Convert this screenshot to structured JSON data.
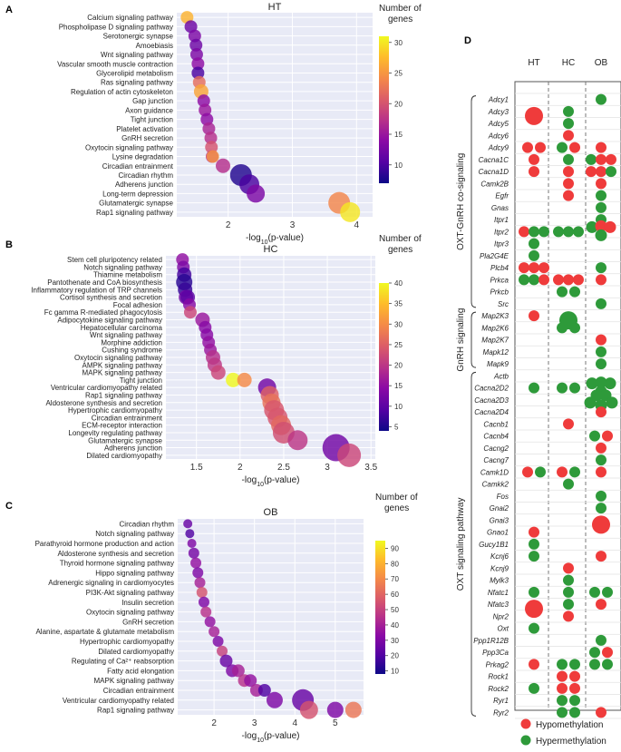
{
  "chart_data": [
    {
      "panel": "A",
      "type": "scatter",
      "title": "HT",
      "xlabel": "-log10(p-value)",
      "xticks": [
        2,
        3,
        4
      ],
      "xlim": [
        1.2,
        4.25
      ],
      "legend_title": "Number of genes",
      "legend_ticks": [
        10,
        15,
        20,
        25,
        30
      ],
      "legend_range": [
        7,
        31
      ],
      "categories": [
        "Calcium signaling pathway",
        "Phospholipase D signaling pathway",
        "Serotonergic synapse",
        "Amoebiasis",
        "Wnt signaling pathway",
        "Vascular smooth muscle contraction",
        "Glycerolipid metabolism",
        "Ras signaling pathway",
        "Regulation of actin cytoskeleton",
        "Gap junction",
        "Axon guidance",
        "Tight junction",
        "Platelet activation",
        "GnRH secretion",
        "Oxytocin signaling pathway",
        "Lysine degradation",
        "Circadian entrainment",
        "Circadian rhythm",
        "Adherens junction",
        "Long-term depression",
        "Glutamatergic synapse",
        "Rap1 signaling pathway"
      ],
      "x": [
        1.36,
        1.42,
        1.48,
        1.5,
        1.51,
        1.53,
        1.53,
        1.55,
        1.58,
        1.62,
        1.64,
        1.67,
        1.7,
        1.73,
        1.74,
        1.75,
        1.76,
        1.92,
        2.2,
        2.33,
        2.43,
        3.73,
        3.9
      ],
      "genes": [
        27,
        12,
        13,
        12,
        13,
        14,
        10,
        22,
        26,
        14,
        15,
        14,
        16,
        17,
        20,
        17,
        25,
        17,
        8,
        10,
        13,
        24,
        30
      ],
      "sizes": [
        7,
        7,
        7,
        7,
        7,
        7,
        7,
        7,
        8,
        7,
        7,
        7,
        7,
        7,
        7,
        7,
        7,
        8,
        12,
        11,
        10,
        12,
        11
      ],
      "rows": [
        0,
        1,
        2,
        3,
        4,
        5,
        6,
        7,
        8,
        9,
        10,
        11,
        12,
        13,
        14,
        15,
        15,
        16,
        17,
        18,
        19,
        20,
        21
      ]
    },
    {
      "panel": "B",
      "type": "scatter",
      "title": "HC",
      "xlabel": "-log10(p-value)",
      "xticks": [
        1.5,
        2.0,
        2.5,
        3.0,
        3.5
      ],
      "xlim": [
        1.15,
        3.55
      ],
      "legend_title": "Number of genes",
      "legend_ticks": [
        5,
        10,
        15,
        20,
        25,
        30,
        35,
        40
      ],
      "legend_range": [
        4,
        40
      ],
      "categories": [
        "Stem cell pluripotency related",
        "Notch signaling pathway",
        "Thiamine metabolism",
        "Pantothenate and CoA biosynthesis",
        "Inflammatory regulation of TRP channels",
        "Cortisol synthesis and secretion",
        "Focal adhesion",
        "Fc gamma R-mediated phagocytosis",
        "Adipocytokine signaling pathway",
        "Hepatocellular carcinoma",
        "Wnt signaling pathway",
        "Morphine addiction",
        "Cushing syndrome",
        "Oxytocin signaling pathway",
        "AMPK signaling pathway",
        "MAPK signaling pathway",
        "Tight junction",
        "Ventricular cardiomyopathy related",
        "Rap1 signaling pathway",
        "Aldosterone synthesis and secretion",
        "Hypertrophic cardiomyopathy",
        "Circadian entrainment",
        "ECM-receptor interaction",
        "Longevity regulating pathway",
        "Glutamatergic synapse",
        "Adherens junction",
        "Dilated cardiomyopathy"
      ],
      "x": [
        1.34,
        1.35,
        1.36,
        1.36,
        1.37,
        1.38,
        1.4,
        1.42,
        1.43,
        1.57,
        1.6,
        1.62,
        1.64,
        1.66,
        1.69,
        1.71,
        1.75,
        1.92,
        2.05,
        2.31,
        2.34,
        2.36,
        2.39,
        2.43,
        2.47,
        2.5,
        2.66,
        3.1,
        3.25
      ],
      "genes": [
        15,
        13,
        8,
        6,
        7,
        12,
        10,
        14,
        22,
        16,
        14,
        14,
        15,
        16,
        19,
        20,
        22,
        40,
        30,
        12,
        25,
        27,
        24,
        24,
        26,
        23,
        20,
        12,
        22
      ],
      "sizes": [
        7,
        7,
        8,
        9,
        8,
        8,
        8,
        7,
        7,
        8,
        7,
        7,
        7,
        7,
        8,
        8,
        8,
        8,
        8,
        10,
        10,
        10,
        11,
        11,
        11,
        12,
        11,
        15,
        13
      ],
      "rows": [
        0,
        1,
        2,
        3,
        4,
        5,
        5,
        6,
        7,
        8,
        9,
        10,
        11,
        12,
        13,
        14,
        15,
        16,
        16,
        17,
        18,
        19,
        20,
        21,
        22,
        23,
        24,
        25,
        26
      ]
    },
    {
      "panel": "C",
      "type": "scatter",
      "title": "OB",
      "xlabel": "-log10(p-value)",
      "xticks": [
        2,
        3,
        4,
        5
      ],
      "xlim": [
        1.1,
        5.7
      ],
      "legend_title": "Number of genes",
      "legend_ticks": [
        10,
        20,
        30,
        40,
        50,
        60,
        70,
        80,
        90
      ],
      "legend_range": [
        8,
        95
      ],
      "categories": [
        "Circadian rhythm",
        "Notch signaling pathway",
        "Parathyroid hormone production and action",
        "Aldosterone synthesis and secretion",
        "Thyroid hormone signaling pathway",
        "Hippo signaling pathway",
        "Adrenergic signaling in cardiomyocytes",
        "PI3K-Akt signaling pathway",
        "Insulin secretion",
        "Oxytocin signaling pathway",
        "GnRH secretion",
        "Alanine, aspartate & glutamate metabolism",
        "Hypertrophic cardiomyopathy",
        "Dilated cardiomyopathy",
        "Regulating of Ca2+ reabsorption",
        "Fatty acid elongation",
        "MAPK signaling pathway",
        "Circadian entrainment",
        "Ventricular cardiomyopathy related",
        "Rap1 signaling pathway"
      ],
      "x": [
        1.35,
        1.4,
        1.45,
        1.5,
        1.55,
        1.6,
        1.65,
        1.7,
        1.75,
        1.8,
        1.9,
        2.0,
        2.1,
        2.2,
        2.3,
        2.45,
        2.6,
        2.75,
        2.9,
        3.05,
        3.25,
        3.5,
        4.2,
        4.35,
        5.0,
        5.45
      ],
      "genes": [
        25,
        20,
        30,
        28,
        35,
        30,
        40,
        55,
        30,
        45,
        35,
        40,
        30,
        50,
        25,
        30,
        40,
        45,
        35,
        40,
        20,
        30,
        25,
        55,
        30,
        65
      ],
      "sizes": [
        5,
        5,
        5,
        6,
        6,
        6,
        6,
        6,
        6,
        6,
        6,
        6,
        6,
        6,
        7,
        7,
        7,
        7,
        7,
        7,
        7,
        9,
        12,
        10,
        9,
        9
      ],
      "rows": [
        0,
        1,
        2,
        3,
        4,
        5,
        6,
        7,
        8,
        9,
        10,
        11,
        12,
        13,
        14,
        15,
        15,
        16,
        16,
        17,
        17,
        18,
        18,
        19,
        19,
        19
      ]
    },
    {
      "panel": "D",
      "type": "dot-matrix",
      "columns": [
        "HT",
        "HC",
        "OB"
      ],
      "legend": {
        "red": "Hypomethylation",
        "green": "Hypermethylation"
      },
      "groups": [
        {
          "label": "OXT-GnRH co-signaling",
          "from": "Adcy1",
          "to": "Src"
        },
        {
          "label": "GnRH signaling",
          "from": "Map2K3",
          "to": "Mapk9"
        },
        {
          "label": "OXT signaling pathway",
          "from": "Actb",
          "to": "Ryr2"
        }
      ],
      "genes": [
        "Adcy1",
        "Adcy3",
        "Adcy5",
        "Adcy6",
        "Adcy9",
        "Cacna1C",
        "Cacna1D",
        "Camk2B",
        "Egfr",
        "Gnas",
        "Itpr1",
        "Itpr2",
        "Itpr3",
        "Pla2G4E",
        "Plcb4",
        "Prkca",
        "Prkcb",
        "Src",
        "Map2K3",
        "Map2K6",
        "Map2K7",
        "Mapk12",
        "Mapk9",
        "Actb",
        "Cacna2D2",
        "Cacna2D3",
        "Cacna2D4",
        "Cacnb1",
        "Cacnb4",
        "Cacng2",
        "Cacng7",
        "Camk1D",
        "Camkk2",
        "Fos",
        "Gnai2",
        "Gnai3",
        "Gnao1",
        "Gucy1B1",
        "Kcnj6",
        "Kcnj9",
        "Mylk3",
        "Nfatc1",
        "Nfatc3",
        "Npr2",
        "Oxt",
        "Ppp1R12B",
        "Ppp3Ca",
        "Prkag2",
        "Rock1",
        "Rock2",
        "Ryr1",
        "Ryr2"
      ],
      "marks": {
        "HT": [
          "",
          "RL",
          "",
          "",
          "RR",
          "R",
          "R",
          "",
          "",
          "",
          "",
          "RGG",
          "G",
          "G",
          "RRR",
          "GGR",
          "",
          "",
          "R",
          "",
          "",
          "",
          "",
          "",
          "G",
          "",
          "",
          "",
          "",
          "",
          "",
          "RG",
          "",
          "",
          "",
          "",
          "R",
          "G",
          "G",
          "",
          "",
          "G",
          "RL",
          "",
          "G",
          "",
          "",
          "R",
          "",
          "G",
          "",
          ""
        ],
        "HC": [
          "",
          "G",
          "G",
          "R",
          "GR",
          "G",
          "R",
          "R",
          "R",
          "",
          "",
          "GGG",
          "",
          "",
          "",
          "RRR",
          "GG",
          "",
          "GL",
          "GG",
          "",
          "",
          "",
          "",
          "GG",
          "",
          "",
          "R",
          "",
          "",
          "",
          "RG",
          "G",
          "",
          "",
          "",
          "",
          "",
          "",
          "R",
          "G",
          "G",
          "G",
          "R",
          "",
          "",
          "",
          "GG",
          "RR",
          "RR",
          "GG",
          "GG"
        ],
        "OB": [
          "G",
          "",
          "",
          "",
          "R",
          "GRR",
          "RRG",
          "R",
          "G",
          "G",
          "G",
          "GRRG",
          "",
          "",
          "G",
          "R",
          "",
          "G",
          "",
          "",
          "R",
          "G",
          "G",
          "",
          "GGGG",
          "GGGGG",
          "R",
          "",
          "GR",
          "R",
          "G",
          "R",
          "",
          "G",
          "G",
          "RL",
          "",
          "",
          "R",
          "",
          "",
          "GG",
          "R",
          "",
          "",
          "G",
          "GR",
          "GG",
          "",
          "",
          "",
          "R"
        ]
      }
    }
  ],
  "labels": {
    "panel_a": "A",
    "panel_b": "B",
    "panel_c": "C",
    "panel_d": "D"
  },
  "colors": {
    "plot_bg": "#e8eaf6",
    "grid": "#ffffff",
    "red": "#ef3b3b",
    "green": "#2e9a3a"
  },
  "colormap": [
    "#0d0887",
    "#5302a3",
    "#8b0aa5",
    "#b83289",
    "#db5c68",
    "#f48849",
    "#febc2a",
    "#f0f921"
  ]
}
